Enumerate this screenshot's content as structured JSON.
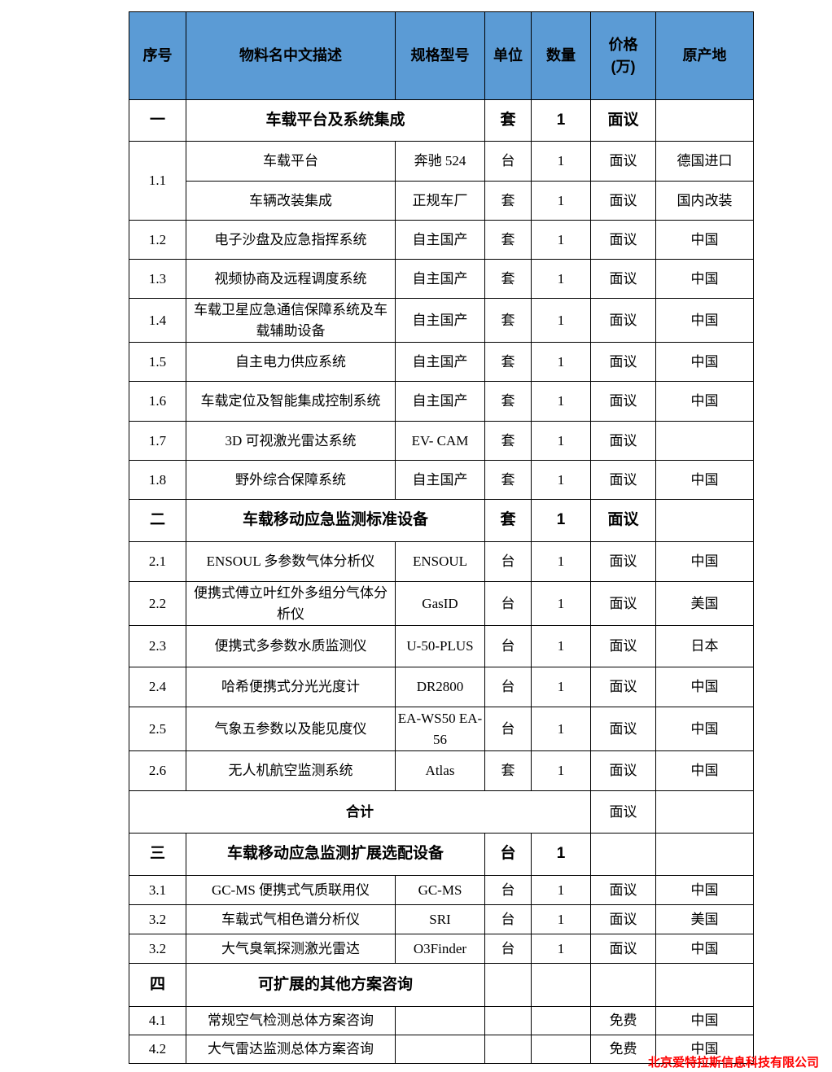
{
  "watermark": {
    "text": "北京爱特拉斯信息科技有限公司",
    "color": "#ff0000"
  },
  "theme": {
    "header_bg": "#5B9BD5",
    "header_text": "#000000",
    "border": "#000000"
  },
  "table": {
    "rows": [
      {
        "type": "header",
        "cells": [
          {
            "t": "序号"
          },
          {
            "t": "物料名中文描述"
          },
          {
            "t": "规格型号"
          },
          {
            "t": "单位"
          },
          {
            "t": "数量"
          },
          {
            "t": "价格\n(万)",
            "cls": "price-head"
          },
          {
            "t": "原产地"
          }
        ]
      },
      {
        "type": "section",
        "cells": [
          {
            "t": "一"
          },
          {
            "t": "车载平台及系统集成",
            "colspan": 2,
            "cls": "left"
          },
          {
            "t": "套"
          },
          {
            "t": "1"
          },
          {
            "t": "面议",
            "cls": "normal"
          },
          {
            "t": ""
          }
        ]
      },
      {
        "type": "item",
        "cells": [
          {
            "t": "1.1",
            "rowspan": 2
          },
          {
            "t": "车载平台"
          },
          {
            "t": "奔驰 524"
          },
          {
            "t": "台"
          },
          {
            "t": "1"
          },
          {
            "t": "面议"
          },
          {
            "t": "德国进口"
          }
        ]
      },
      {
        "type": "item",
        "cells": [
          {
            "t": "车辆改装集成"
          },
          {
            "t": "正规车厂"
          },
          {
            "t": "套"
          },
          {
            "t": "1"
          },
          {
            "t": "面议"
          },
          {
            "t": "国内改装"
          }
        ]
      },
      {
        "type": "item",
        "cells": [
          {
            "t": "1.2"
          },
          {
            "t": "电子沙盘及应急指挥系统"
          },
          {
            "t": "自主国产"
          },
          {
            "t": "套"
          },
          {
            "t": "1"
          },
          {
            "t": "面议"
          },
          {
            "t": "中国"
          }
        ]
      },
      {
        "type": "item",
        "cells": [
          {
            "t": "1.3"
          },
          {
            "t": "视频协商及远程调度系统"
          },
          {
            "t": "自主国产"
          },
          {
            "t": "套"
          },
          {
            "t": "1"
          },
          {
            "t": "面议"
          },
          {
            "t": "中国"
          }
        ]
      },
      {
        "type": "item",
        "cells": [
          {
            "t": "1.4"
          },
          {
            "t": "车载卫星应急通信保障系统及车载辅助设备"
          },
          {
            "t": "自主国产"
          },
          {
            "t": "套"
          },
          {
            "t": "1"
          },
          {
            "t": "面议"
          },
          {
            "t": "中国"
          }
        ]
      },
      {
        "type": "item",
        "cells": [
          {
            "t": "1.5"
          },
          {
            "t": "自主电力供应系统"
          },
          {
            "t": "自主国产"
          },
          {
            "t": "套"
          },
          {
            "t": "1"
          },
          {
            "t": "面议"
          },
          {
            "t": "中国"
          }
        ]
      },
      {
        "type": "item",
        "cells": [
          {
            "t": "1.6"
          },
          {
            "t": "车载定位及智能集成控制系统"
          },
          {
            "t": "自主国产"
          },
          {
            "t": "套"
          },
          {
            "t": "1"
          },
          {
            "t": "面议"
          },
          {
            "t": "中国"
          }
        ]
      },
      {
        "type": "item",
        "cells": [
          {
            "t": "1.7"
          },
          {
            "t": "3D 可视激光雷达系统"
          },
          {
            "t": "EV- CAM"
          },
          {
            "t": "套"
          },
          {
            "t": "1"
          },
          {
            "t": "面议"
          },
          {
            "t": ""
          }
        ]
      },
      {
        "type": "item",
        "cells": [
          {
            "t": "1.8"
          },
          {
            "t": "野外综合保障系统"
          },
          {
            "t": "自主国产"
          },
          {
            "t": "套"
          },
          {
            "t": "1"
          },
          {
            "t": "面议"
          },
          {
            "t": "中国"
          }
        ]
      },
      {
        "type": "section",
        "cells": [
          {
            "t": "二"
          },
          {
            "t": "车载移动应急监测标准设备",
            "colspan": 2
          },
          {
            "t": "套"
          },
          {
            "t": "1"
          },
          {
            "t": "面议",
            "cls": "normal"
          },
          {
            "t": ""
          }
        ]
      },
      {
        "type": "item",
        "cells": [
          {
            "t": "2.1"
          },
          {
            "t": "ENSOUL 多参数气体分析仪"
          },
          {
            "t": "ENSOUL"
          },
          {
            "t": "台"
          },
          {
            "t": "1"
          },
          {
            "t": "面议"
          },
          {
            "t": "中国"
          }
        ]
      },
      {
        "type": "item",
        "cells": [
          {
            "t": "2.2"
          },
          {
            "t": "便携式傅立叶红外多组分气体分析仪"
          },
          {
            "t": "GasID"
          },
          {
            "t": "台"
          },
          {
            "t": "1"
          },
          {
            "t": "面议"
          },
          {
            "t": "美国"
          }
        ]
      },
      {
        "type": "item",
        "cells": [
          {
            "t": "2.3"
          },
          {
            "t": "便携式多参数水质监测仪"
          },
          {
            "t": "U-50-PLUS",
            "cls": "brk"
          },
          {
            "t": "台"
          },
          {
            "t": "1"
          },
          {
            "t": "面议"
          },
          {
            "t": "日本"
          }
        ]
      },
      {
        "type": "item",
        "cells": [
          {
            "t": "2.4"
          },
          {
            "t": "哈希便携式分光光度计"
          },
          {
            "t": "DR2800"
          },
          {
            "t": "台"
          },
          {
            "t": "1"
          },
          {
            "t": "面议"
          },
          {
            "t": "中国"
          }
        ]
      },
      {
        "type": "item",
        "cells": [
          {
            "t": "2.5"
          },
          {
            "t": "气象五参数以及能见度仪"
          },
          {
            "t": "EA-WS50 EA-56"
          },
          {
            "t": "台"
          },
          {
            "t": "1"
          },
          {
            "t": "面议"
          },
          {
            "t": "中国"
          }
        ]
      },
      {
        "type": "item",
        "cells": [
          {
            "t": "2.6"
          },
          {
            "t": "无人机航空监测系统"
          },
          {
            "t": "Atlas"
          },
          {
            "t": "套"
          },
          {
            "t": "1"
          },
          {
            "t": "面议"
          },
          {
            "t": "中国"
          }
        ]
      },
      {
        "type": "total",
        "cells": [
          {
            "t": "合计",
            "colspan": 5,
            "cls": "total-label"
          },
          {
            "t": "面议",
            "cls": "normal"
          },
          {
            "t": ""
          }
        ]
      },
      {
        "type": "section",
        "cells": [
          {
            "t": "三"
          },
          {
            "t": "车载移动应急监测扩展选配设备",
            "colspan": 2
          },
          {
            "t": "台"
          },
          {
            "t": "1"
          },
          {
            "t": ""
          },
          {
            "t": ""
          }
        ]
      },
      {
        "type": "item",
        "cells": [
          {
            "t": "3.1"
          },
          {
            "t": "GC-MS 便携式气质联用仪"
          },
          {
            "t": "GC-MS"
          },
          {
            "t": "台"
          },
          {
            "t": "1"
          },
          {
            "t": "面议"
          },
          {
            "t": "中国"
          }
        ]
      },
      {
        "type": "item",
        "cells": [
          {
            "t": "3.2"
          },
          {
            "t": "车载式气相色谱分析仪"
          },
          {
            "t": "SRI"
          },
          {
            "t": "台"
          },
          {
            "t": "1"
          },
          {
            "t": "面议"
          },
          {
            "t": "美国"
          }
        ]
      },
      {
        "type": "item",
        "cells": [
          {
            "t": "3.2"
          },
          {
            "t": "大气臭氧探测激光雷达"
          },
          {
            "t": "O3Finder"
          },
          {
            "t": "台"
          },
          {
            "t": "1"
          },
          {
            "t": "面议"
          },
          {
            "t": "中国"
          }
        ]
      },
      {
        "type": "section",
        "cells": [
          {
            "t": "四"
          },
          {
            "t": "可扩展的其他方案咨询",
            "colspan": 2
          },
          {
            "t": ""
          },
          {
            "t": ""
          },
          {
            "t": ""
          },
          {
            "t": ""
          }
        ]
      },
      {
        "type": "item",
        "cells": [
          {
            "t": "4.1"
          },
          {
            "t": "常规空气检测总体方案咨询"
          },
          {
            "t": ""
          },
          {
            "t": ""
          },
          {
            "t": ""
          },
          {
            "t": "免费"
          },
          {
            "t": "中国"
          }
        ]
      },
      {
        "type": "item",
        "cells": [
          {
            "t": "4.2"
          },
          {
            "t": "大气雷达监测总体方案咨询"
          },
          {
            "t": ""
          },
          {
            "t": ""
          },
          {
            "t": ""
          },
          {
            "t": "免费"
          },
          {
            "t": "中国"
          }
        ]
      }
    ]
  }
}
